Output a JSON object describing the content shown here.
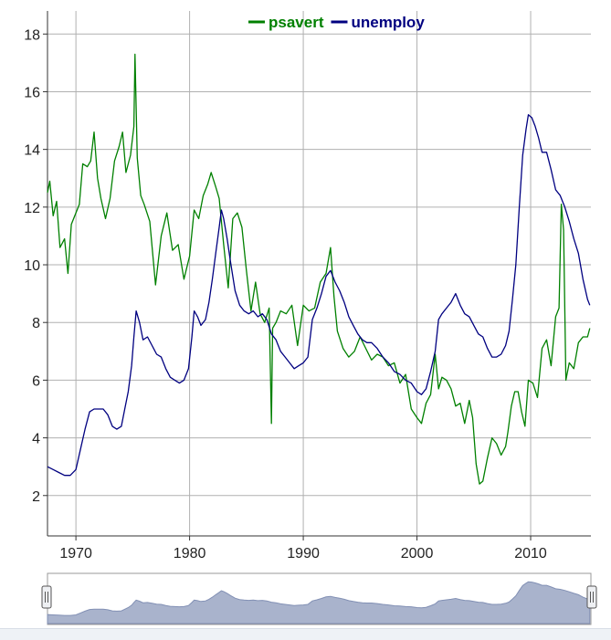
{
  "chart_data": {
    "type": "line",
    "title": "",
    "xlabel": "",
    "ylabel": "",
    "xlim": [
      1967.5,
      2015.3
    ],
    "ylim": [
      0.6,
      18.8
    ],
    "x_ticks": [
      1970,
      1980,
      1990,
      2000,
      2010
    ],
    "x_tick_labels": [
      "1970",
      "1980",
      "1990",
      "2000",
      "2010"
    ],
    "y_ticks": [
      2,
      4,
      6,
      8,
      10,
      12,
      14,
      16,
      18
    ],
    "y_tick_labels": [
      "2",
      "4",
      "6",
      "8",
      "10",
      "12",
      "14",
      "16",
      "18"
    ],
    "grid": true,
    "legend_position": "top-center",
    "series": [
      {
        "name": "psavert",
        "color": "#008000",
        "x": [
          1967.5,
          1967.7,
          1968.0,
          1968.3,
          1968.6,
          1969.0,
          1969.3,
          1969.6,
          1970.0,
          1970.3,
          1970.6,
          1971.0,
          1971.3,
          1971.6,
          1971.9,
          1972.2,
          1972.6,
          1973.0,
          1973.4,
          1973.8,
          1974.1,
          1974.4,
          1974.8,
          1975.1,
          1975.2,
          1975.4,
          1975.7,
          1976.0,
          1976.5,
          1977.0,
          1977.5,
          1978.0,
          1978.5,
          1979.0,
          1979.5,
          1980.0,
          1980.4,
          1980.8,
          1981.2,
          1981.6,
          1981.9,
          1982.3,
          1982.6,
          1983.0,
          1983.4,
          1983.8,
          1984.2,
          1984.6,
          1985.0,
          1985.4,
          1985.8,
          1986.2,
          1986.6,
          1987.0,
          1987.2,
          1987.3,
          1987.6,
          1988.0,
          1988.5,
          1989.0,
          1989.5,
          1990.0,
          1990.5,
          1991.0,
          1991.5,
          1992.0,
          1992.4,
          1992.7,
          1993.0,
          1993.5,
          1994.0,
          1994.5,
          1995.0,
          1995.5,
          1996.0,
          1996.5,
          1997.0,
          1997.5,
          1998.0,
          1998.5,
          1999.0,
          1999.5,
          2000.0,
          2000.4,
          2000.8,
          2001.2,
          2001.6,
          2001.9,
          2002.2,
          2002.6,
          2003.0,
          2003.4,
          2003.8,
          2004.2,
          2004.6,
          2004.9,
          2005.2,
          2005.5,
          2005.8,
          2006.2,
          2006.6,
          2007.0,
          2007.4,
          2007.8,
          2008.0,
          2008.3,
          2008.6,
          2008.9,
          2009.2,
          2009.5,
          2009.8,
          2010.2,
          2010.6,
          2011.0,
          2011.4,
          2011.8,
          2012.2,
          2012.5,
          2012.7,
          2012.9,
          2013.1,
          2013.4,
          2013.8,
          2014.2,
          2014.6,
          2015.0,
          2015.2
        ],
        "y": [
          12.5,
          12.9,
          11.7,
          12.2,
          10.6,
          10.9,
          9.7,
          11.4,
          11.8,
          12.1,
          13.5,
          13.4,
          13.6,
          14.6,
          13.0,
          12.3,
          11.6,
          12.3,
          13.6,
          14.1,
          14.6,
          13.2,
          13.8,
          14.8,
          17.3,
          13.7,
          12.4,
          12.1,
          11.5,
          9.3,
          11.0,
          11.8,
          10.5,
          10.7,
          9.5,
          10.3,
          11.9,
          11.6,
          12.4,
          12.8,
          13.2,
          12.7,
          12.3,
          10.7,
          9.2,
          11.6,
          11.8,
          11.3,
          9.8,
          8.4,
          9.4,
          8.3,
          8.0,
          8.5,
          4.5,
          7.8,
          8.0,
          8.4,
          8.3,
          8.6,
          7.2,
          8.6,
          8.4,
          8.5,
          9.4,
          9.7,
          10.6,
          8.9,
          7.7,
          7.1,
          6.8,
          7.0,
          7.5,
          7.1,
          6.7,
          6.9,
          6.8,
          6.5,
          6.6,
          5.9,
          6.2,
          5.0,
          4.7,
          4.5,
          5.2,
          5.5,
          6.9,
          5.7,
          6.1,
          6.0,
          5.7,
          5.1,
          5.2,
          4.5,
          5.3,
          4.7,
          3.1,
          2.4,
          2.5,
          3.3,
          4.0,
          3.8,
          3.4,
          3.7,
          4.2,
          5.1,
          5.6,
          5.6,
          4.9,
          4.4,
          6.0,
          5.9,
          5.4,
          7.1,
          7.4,
          6.5,
          8.2,
          8.5,
          12.1,
          11.2,
          6.0,
          6.6,
          6.4,
          7.3,
          7.5,
          7.5,
          7.8
        ]
      },
      {
        "name": "unemploy",
        "color": "#000080",
        "x": [
          1967.5,
          1968.0,
          1968.5,
          1969.0,
          1969.5,
          1970.0,
          1970.4,
          1970.8,
          1971.2,
          1971.6,
          1972.0,
          1972.4,
          1972.8,
          1973.2,
          1973.6,
          1974.0,
          1974.3,
          1974.6,
          1974.9,
          1975.1,
          1975.3,
          1975.6,
          1975.9,
          1976.3,
          1976.7,
          1977.1,
          1977.5,
          1977.9,
          1978.3,
          1978.7,
          1979.1,
          1979.5,
          1979.9,
          1980.2,
          1980.4,
          1980.7,
          1981.0,
          1981.4,
          1981.7,
          1982.0,
          1982.3,
          1982.6,
          1982.8,
          1983.0,
          1983.3,
          1983.6,
          1984.0,
          1984.4,
          1984.8,
          1985.2,
          1985.6,
          1986.0,
          1986.4,
          1986.8,
          1987.2,
          1987.6,
          1988.0,
          1988.4,
          1988.8,
          1989.2,
          1989.6,
          1990.0,
          1990.4,
          1990.8,
          1991.2,
          1991.6,
          1992.0,
          1992.4,
          1992.8,
          1993.2,
          1993.6,
          1994.0,
          1994.4,
          1994.8,
          1995.2,
          1995.6,
          1996.0,
          1996.5,
          1997.0,
          1997.5,
          1998.0,
          1998.5,
          1999.0,
          1999.5,
          2000.0,
          2000.4,
          2000.8,
          2001.2,
          2001.6,
          2001.9,
          2002.2,
          2002.6,
          2003.0,
          2003.4,
          2003.8,
          2004.2,
          2004.6,
          2005.0,
          2005.4,
          2005.8,
          2006.2,
          2006.6,
          2007.0,
          2007.4,
          2007.8,
          2008.1,
          2008.4,
          2008.7,
          2009.0,
          2009.3,
          2009.6,
          2009.8,
          2010.1,
          2010.4,
          2010.7,
          2011.0,
          2011.4,
          2011.8,
          2012.2,
          2012.6,
          2013.0,
          2013.4,
          2013.8,
          2014.2,
          2014.6,
          2015.0,
          2015.2
        ],
        "y": [
          3.0,
          2.9,
          2.8,
          2.7,
          2.7,
          2.9,
          3.6,
          4.3,
          4.9,
          5.0,
          5.0,
          5.0,
          4.8,
          4.4,
          4.3,
          4.4,
          5.0,
          5.6,
          6.5,
          7.5,
          8.4,
          8.0,
          7.4,
          7.5,
          7.2,
          6.9,
          6.8,
          6.4,
          6.1,
          6.0,
          5.9,
          6.0,
          6.4,
          7.5,
          8.4,
          8.2,
          7.9,
          8.1,
          8.7,
          9.5,
          10.4,
          11.3,
          11.9,
          11.6,
          10.9,
          10.1,
          9.1,
          8.6,
          8.4,
          8.3,
          8.4,
          8.2,
          8.3,
          8.1,
          7.6,
          7.4,
          7.0,
          6.8,
          6.6,
          6.4,
          6.5,
          6.6,
          6.8,
          8.1,
          8.5,
          9.0,
          9.6,
          9.8,
          9.4,
          9.1,
          8.7,
          8.2,
          7.9,
          7.6,
          7.4,
          7.3,
          7.3,
          7.1,
          6.8,
          6.6,
          6.3,
          6.2,
          6.0,
          5.9,
          5.6,
          5.5,
          5.7,
          6.3,
          7.0,
          8.1,
          8.3,
          8.5,
          8.7,
          9.0,
          8.6,
          8.3,
          8.2,
          7.9,
          7.6,
          7.5,
          7.1,
          6.8,
          6.8,
          6.9,
          7.2,
          7.7,
          8.8,
          10.0,
          12.0,
          13.8,
          14.7,
          15.2,
          15.1,
          14.8,
          14.4,
          13.9,
          13.9,
          13.3,
          12.6,
          12.4,
          12.0,
          11.5,
          10.9,
          10.4,
          9.5,
          8.8,
          8.6
        ]
      }
    ],
    "range_selector": {
      "type": "area",
      "series": "unemploy",
      "handles": 2
    }
  }
}
